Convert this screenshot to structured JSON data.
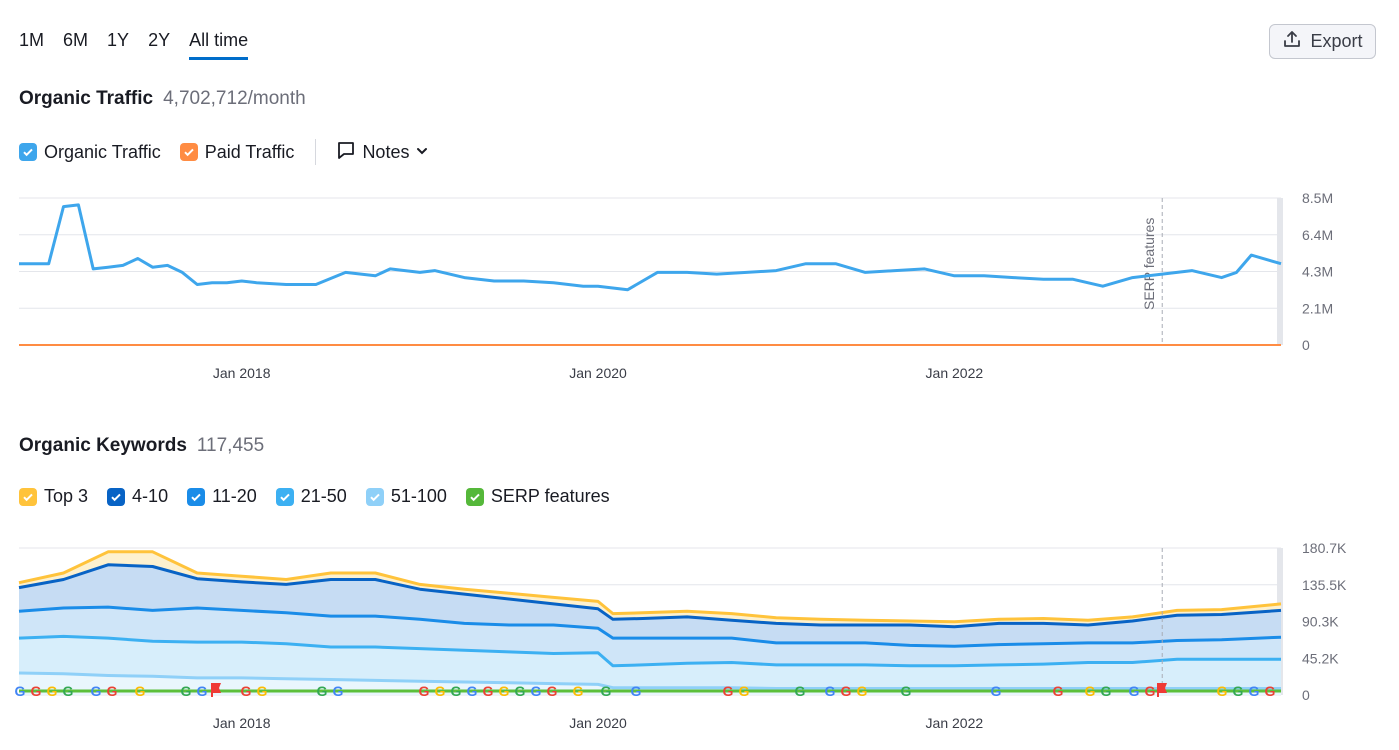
{
  "range_tabs": [
    "1M",
    "6M",
    "1Y",
    "2Y",
    "All time"
  ],
  "active_tab": "All time",
  "export_label": "Export",
  "traffic": {
    "title": "Organic Traffic",
    "value": "4,702,712/month",
    "legend": [
      {
        "label": "Organic Traffic",
        "color": "#3ea6ec"
      },
      {
        "label": "Paid Traffic",
        "color": "#ff8c43"
      }
    ],
    "notes_label": "Notes"
  },
  "keywords": {
    "title": "Organic Keywords",
    "value": "117,455",
    "legend": [
      {
        "label": "Top 3",
        "color": "#ffc33b"
      },
      {
        "label": "4-10",
        "color": "#0863c5"
      },
      {
        "label": "11-20",
        "color": "#1a8ce8"
      },
      {
        "label": "21-50",
        "color": "#3cb0f2"
      },
      {
        "label": "51-100",
        "color": "#8fd0f8"
      },
      {
        "label": "SERP features",
        "color": "#55b83a"
      }
    ]
  },
  "chart_data": [
    {
      "type": "line",
      "x_ticks": [
        "Jan 2018",
        "Jan 2020",
        "Jan 2022"
      ],
      "y_ticks": [
        "8.5M",
        "6.4M",
        "4.3M",
        "2.1M",
        "0"
      ],
      "ylim": [
        0,
        8500000
      ],
      "xlim": [
        "2016-10",
        "2023-11"
      ],
      "annotations": [
        {
          "label": "SERP features",
          "x": "2023-03"
        }
      ],
      "series": [
        {
          "name": "Organic Traffic",
          "color": "#3ea6ec",
          "x": [
            "2016-10",
            "2016-11",
            "2016-12",
            "2017-01",
            "2017-02",
            "2017-03",
            "2017-04",
            "2017-05",
            "2017-06",
            "2017-07",
            "2017-08",
            "2017-09",
            "2017-10",
            "2017-11",
            "2017-12",
            "2018-01",
            "2018-02",
            "2018-04",
            "2018-06",
            "2018-08",
            "2018-10",
            "2018-11",
            "2018-12",
            "2019-01",
            "2019-02",
            "2019-04",
            "2019-06",
            "2019-08",
            "2019-10",
            "2019-12",
            "2020-01",
            "2020-03",
            "2020-05",
            "2020-07",
            "2020-09",
            "2020-11",
            "2021-01",
            "2021-03",
            "2021-05",
            "2021-07",
            "2021-09",
            "2021-11",
            "2022-01",
            "2022-03",
            "2022-05",
            "2022-07",
            "2022-09",
            "2022-11",
            "2023-01",
            "2023-03",
            "2023-05",
            "2023-07",
            "2023-08",
            "2023-09",
            "2023-11"
          ],
          "values": [
            4700000,
            4700000,
            4700000,
            8000000,
            8100000,
            4400000,
            4500000,
            4600000,
            5000000,
            4500000,
            4600000,
            4200000,
            3500000,
            3600000,
            3600000,
            3700000,
            3600000,
            3500000,
            3500000,
            4200000,
            4000000,
            4400000,
            4300000,
            4200000,
            4300000,
            3900000,
            3700000,
            3700000,
            3600000,
            3400000,
            3400000,
            3200000,
            4200000,
            4200000,
            4100000,
            4200000,
            4300000,
            4700000,
            4700000,
            4200000,
            4300000,
            4400000,
            4000000,
            4000000,
            3900000,
            3800000,
            3800000,
            3400000,
            3900000,
            4100000,
            4300000,
            3900000,
            4200000,
            5200000,
            4700000
          ]
        },
        {
          "name": "Paid Traffic",
          "color": "#ff8c43",
          "x": [
            "2016-10",
            "2023-11"
          ],
          "values": [
            0,
            0
          ]
        }
      ]
    },
    {
      "type": "area",
      "x_ticks": [
        "Jan 2018",
        "Jan 2020",
        "Jan 2022"
      ],
      "y_ticks": [
        "180.7K",
        "135.5K",
        "90.3K",
        "45.2K",
        "0"
      ],
      "ylim": [
        0,
        180700
      ],
      "xlim": [
        "2016-10",
        "2023-11"
      ],
      "x": [
        "2016-10",
        "2017-01",
        "2017-04",
        "2017-07",
        "2017-10",
        "2018-01",
        "2018-04",
        "2018-07",
        "2018-10",
        "2019-01",
        "2019-04",
        "2019-07",
        "2019-10",
        "2020-01",
        "2020-02",
        "2020-04",
        "2020-07",
        "2020-10",
        "2021-01",
        "2021-04",
        "2021-07",
        "2021-10",
        "2022-01",
        "2022-04",
        "2022-07",
        "2022-10",
        "2023-01",
        "2023-04",
        "2023-07",
        "2023-11"
      ],
      "series": [
        {
          "name": "Top 3",
          "color": "#ffc33b",
          "values": [
            138000,
            150000,
            176000,
            176000,
            150000,
            146000,
            142000,
            150000,
            150000,
            136000,
            130000,
            125000,
            120000,
            115000,
            100000,
            101000,
            103000,
            100000,
            95000,
            93000,
            92000,
            91000,
            90000,
            93000,
            94000,
            92000,
            96000,
            104000,
            105000,
            112000
          ]
        },
        {
          "name": "4-10",
          "color": "#0863c5",
          "values": [
            132000,
            142000,
            160000,
            158000,
            143000,
            139000,
            136000,
            142000,
            142000,
            130000,
            124000,
            118000,
            112000,
            106000,
            93000,
            94000,
            96000,
            92000,
            88000,
            86000,
            86000,
            86000,
            84000,
            88000,
            88000,
            86000,
            91000,
            98000,
            99000,
            104000
          ]
        },
        {
          "name": "11-20",
          "color": "#1a8ce8",
          "values": [
            103000,
            107000,
            108000,
            104000,
            107000,
            104000,
            101000,
            97000,
            97000,
            93000,
            88000,
            86000,
            86000,
            82000,
            70000,
            70000,
            70000,
            70000,
            64000,
            64000,
            64000,
            61000,
            60000,
            62000,
            63000,
            64000,
            64000,
            67000,
            68000,
            71000
          ]
        },
        {
          "name": "21-50",
          "color": "#3cb0f2",
          "values": [
            70000,
            72000,
            70000,
            66000,
            65000,
            65000,
            63000,
            59000,
            59000,
            57000,
            55000,
            53000,
            51000,
            52000,
            36000,
            37000,
            39000,
            40000,
            37000,
            37000,
            37000,
            36000,
            36000,
            37000,
            38000,
            40000,
            40000,
            44000,
            44000,
            44000
          ]
        },
        {
          "name": "51-100",
          "color": "#8fd0f8",
          "values": [
            27000,
            26000,
            24000,
            23000,
            21000,
            21000,
            20000,
            19000,
            18000,
            17000,
            16000,
            15000,
            14000,
            13000,
            9000,
            9000,
            9000,
            9000,
            8000,
            8000,
            8000,
            8000,
            8000,
            8000,
            8000,
            8000,
            8000,
            8000,
            8000,
            8000
          ]
        }
      ]
    }
  ]
}
